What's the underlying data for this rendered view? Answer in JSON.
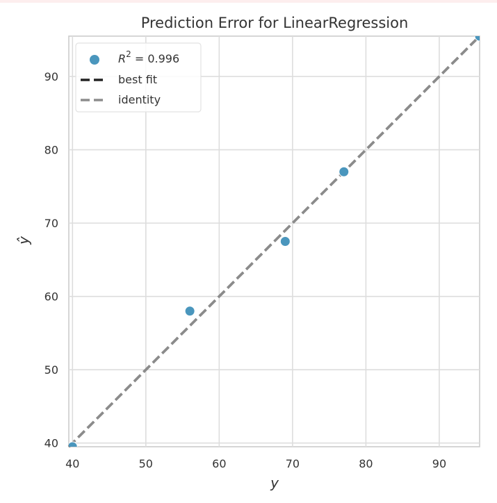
{
  "chart_data": {
    "type": "scatter",
    "title": "Prediction Error for LinearRegression",
    "xlabel": "y",
    "ylabel": "ŷ",
    "xlim": [
      39.5,
      95.5
    ],
    "ylim": [
      39.5,
      95.5
    ],
    "xticks": [
      40,
      50,
      60,
      70,
      80,
      90
    ],
    "yticks": [
      40,
      50,
      60,
      70,
      80,
      90
    ],
    "grid": true,
    "legend": {
      "placement": "top-left",
      "entries": [
        {
          "kind": "scatter",
          "label_math": "R",
          "label_sup": "2",
          "label_rest": " = 0.996"
        },
        {
          "kind": "line",
          "label": "best fit"
        },
        {
          "kind": "line",
          "label": "identity"
        }
      ]
    },
    "series": [
      {
        "kind": "scatter",
        "x": [
          40,
          56,
          69,
          77,
          95.5
        ],
        "y": [
          39.5,
          58,
          67.5,
          77,
          95.5
        ],
        "color": "#4a96bd"
      }
    ],
    "lines": [
      {
        "x": [
          39.5,
          95.5
        ],
        "y": [
          39.5,
          95.5
        ],
        "color": "#222222"
      },
      {
        "x": [
          39.5,
          95.5
        ],
        "y": [
          39.5,
          95.5
        ],
        "color": "#8c8c8c"
      }
    ]
  }
}
